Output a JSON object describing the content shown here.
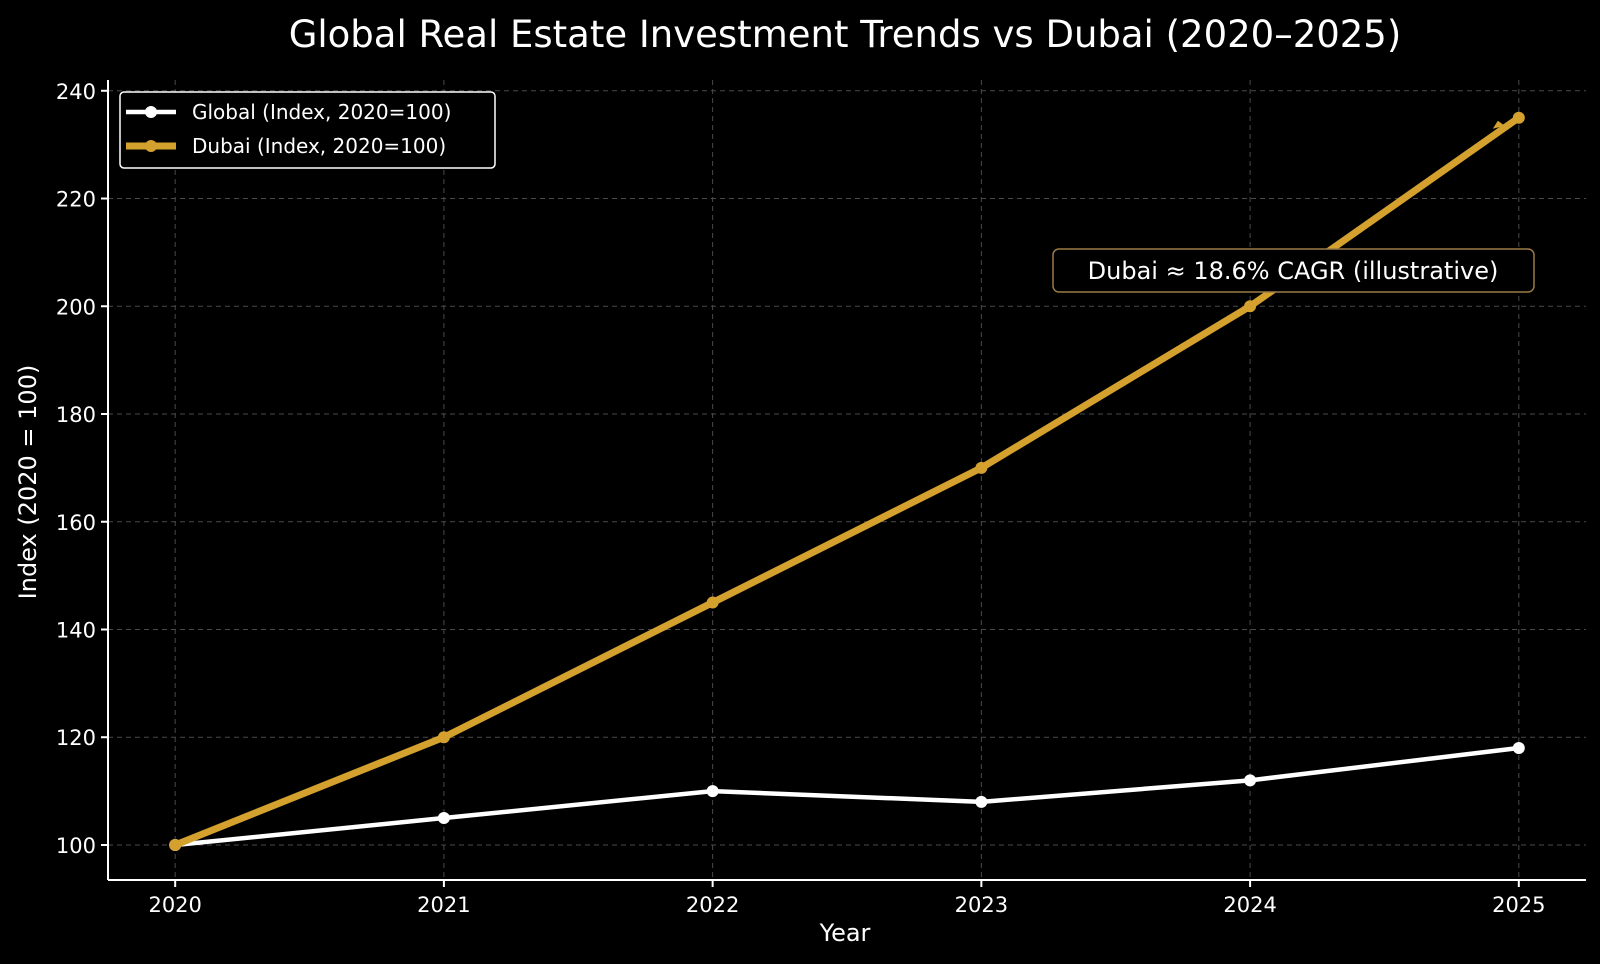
{
  "chart_data": {
    "type": "line",
    "title": "Global Real Estate Investment Trends vs Dubai (2020–2025)",
    "xlabel": "Year",
    "ylabel": "Index (2020 = 100)",
    "x": [
      "2020",
      "2021",
      "2022",
      "2023",
      "2024",
      "2025"
    ],
    "xlim": [
      2019.75,
      2025.25
    ],
    "ylim": [
      93.5,
      242
    ],
    "yticks": [
      100,
      120,
      140,
      160,
      180,
      200,
      220,
      240
    ],
    "grid": true,
    "legend_position": "top-left",
    "series": [
      {
        "name": "Global (Index, 2020=100)",
        "values": [
          100,
          105,
          110,
          108,
          112,
          118
        ],
        "color": "#ffffff"
      },
      {
        "name": "Dubai (Index, 2020=100)",
        "values": [
          100,
          120,
          145,
          170,
          200,
          235
        ],
        "color": "#d4a12e"
      }
    ],
    "annotation": {
      "text": "Dubai ≈ 18.6% CAGR (illustrative)",
      "border_color": "#9b7a45"
    }
  }
}
